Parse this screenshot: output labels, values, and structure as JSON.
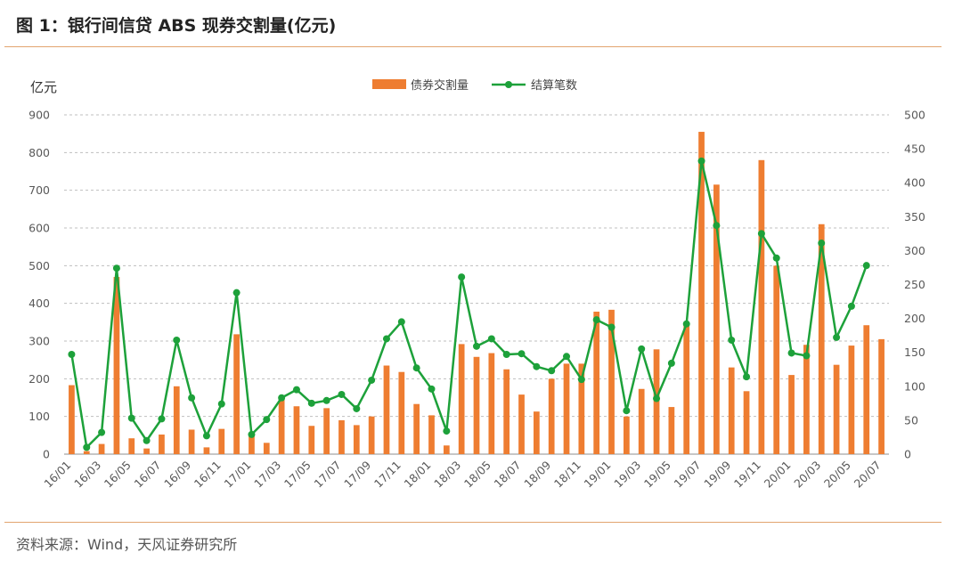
{
  "header": {
    "title": "图 1：银行间信贷 ABS 现券交割量(亿元)"
  },
  "footer": {
    "source": "资料来源：Wind，天风证券研究所"
  },
  "colors": {
    "bar": "#ee7d31",
    "line": "#1da13a",
    "grid": "#bfbfbf",
    "rule": "#e2a46f"
  },
  "chart_data": {
    "type": "bar",
    "y_unit_label": "亿元",
    "ylim_left": [
      0,
      900
    ],
    "ylim_right": [
      0,
      500
    ],
    "yticks_left": [
      0,
      100,
      200,
      300,
      400,
      500,
      600,
      700,
      800,
      900
    ],
    "yticks_right": [
      0,
      50,
      100,
      150,
      200,
      250,
      300,
      350,
      400,
      450,
      500
    ],
    "grid": true,
    "legend_position": "top-center",
    "categories": [
      "16/01",
      "16/02",
      "16/03",
      "16/04",
      "16/05",
      "16/06",
      "16/07",
      "16/08",
      "16/09",
      "16/10",
      "16/11",
      "16/12",
      "17/01",
      "17/02",
      "17/03",
      "17/04",
      "17/05",
      "17/06",
      "17/07",
      "17/08",
      "17/09",
      "17/10",
      "17/11",
      "17/12",
      "18/01",
      "18/02",
      "18/03",
      "18/04",
      "18/05",
      "18/06",
      "18/07",
      "18/08",
      "18/09",
      "18/10",
      "18/11",
      "18/12",
      "19/01",
      "19/02",
      "19/03",
      "19/04",
      "19/05",
      "19/06",
      "19/07",
      "19/08",
      "19/09",
      "19/10",
      "19/11",
      "19/12",
      "20/01",
      "20/02",
      "20/03",
      "20/04",
      "20/05",
      "20/06",
      "20/07"
    ],
    "x_tick_labels": [
      "16/01",
      "16/03",
      "16/05",
      "16/07",
      "16/09",
      "16/11",
      "17/01",
      "17/03",
      "17/05",
      "17/07",
      "17/09",
      "17/11",
      "18/01",
      "18/03",
      "18/05",
      "18/07",
      "18/09",
      "18/11",
      "19/01",
      "19/03",
      "19/05",
      "19/07",
      "19/09",
      "19/11",
      "20/01",
      "20/03",
      "20/05",
      "20/07"
    ],
    "series": [
      {
        "name": "债券交割量",
        "type": "bar",
        "axis": "left",
        "values": [
          183,
          8,
          27,
          470,
          42,
          15,
          52,
          180,
          65,
          18,
          67,
          318,
          48,
          30,
          150,
          127,
          75,
          122,
          90,
          77,
          100,
          235,
          218,
          133,
          103,
          23,
          292,
          258,
          268,
          225,
          158,
          113,
          200,
          240,
          240,
          378,
          383,
          100,
          173,
          278,
          125,
          340,
          855,
          715,
          230,
          167,
          780,
          500,
          210,
          290,
          610,
          237,
          288,
          342,
          305
        ]
      },
      {
        "name": "结算笔数",
        "type": "line",
        "axis": "right",
        "values": [
          147,
          10,
          32,
          274,
          53,
          20,
          52,
          168,
          83,
          27,
          74,
          238,
          29,
          51,
          83,
          95,
          75,
          79,
          88,
          67,
          109,
          170,
          195,
          127,
          96,
          34,
          261,
          159,
          170,
          147,
          148,
          129,
          123,
          144,
          110,
          198,
          187,
          64,
          155,
          82,
          134,
          192,
          432,
          337,
          168,
          114,
          325,
          289,
          149,
          145,
          311,
          172,
          218,
          278,
          null
        ]
      }
    ]
  }
}
